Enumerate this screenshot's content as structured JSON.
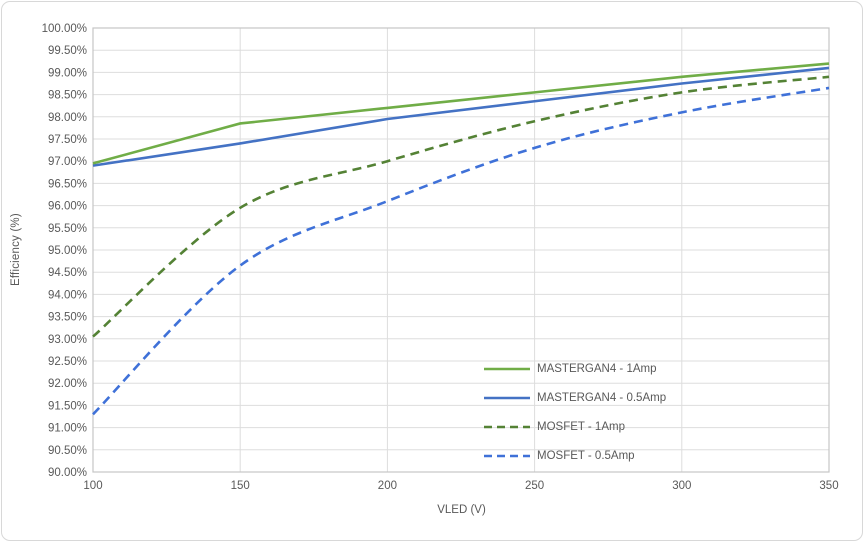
{
  "frame": {
    "background": "#ffffff",
    "border_color": "#d8d8d8"
  },
  "chart_data": {
    "type": "line",
    "xlabel": "VLED (V)",
    "ylabel": "Efficiency (%)",
    "x": [
      100,
      150,
      200,
      250,
      300,
      350
    ],
    "xlim": [
      100,
      350
    ],
    "ylim": [
      90,
      100
    ],
    "ytick_step": 0.5,
    "grid": true,
    "gridline_color": "#dddddd",
    "plot_border_color": "#c6c6c6",
    "tick_label_color": "#595959",
    "legend_position": "inside-lower-right",
    "xticks": [
      "100",
      "150",
      "200",
      "250",
      "300",
      "350"
    ],
    "yticks": [
      "100.00%",
      "99.50%",
      "99.00%",
      "98.50%",
      "98.00%",
      "97.50%",
      "97.00%",
      "96.50%",
      "96.00%",
      "95.50%",
      "95.00%",
      "94.50%",
      "94.00%",
      "93.50%",
      "93.00%",
      "92.50%",
      "92.00%",
      "91.50%",
      "91.00%",
      "90.50%",
      "90.00%"
    ],
    "series": [
      {
        "name": "MASTERGAN4 - 1Amp",
        "color": "#70AD47",
        "style": "solid",
        "values": [
          96.95,
          97.85,
          98.2,
          98.55,
          98.9,
          99.2
        ]
      },
      {
        "name": "MASTERGAN4 - 0.5Amp",
        "color": "#4472C4",
        "style": "solid",
        "values": [
          96.9,
          97.4,
          97.95,
          98.35,
          98.75,
          99.1
        ]
      },
      {
        "name": "MOSFET - 1Amp",
        "color": "#548235",
        "style": "dashed",
        "values": [
          93.05,
          95.95,
          97.0,
          97.9,
          98.55,
          98.9
        ]
      },
      {
        "name": "MOSFET - 0.5Amp",
        "color": "#3F71D8",
        "style": "dashed",
        "values": [
          91.3,
          94.65,
          96.1,
          97.3,
          98.1,
          98.65
        ]
      }
    ]
  }
}
